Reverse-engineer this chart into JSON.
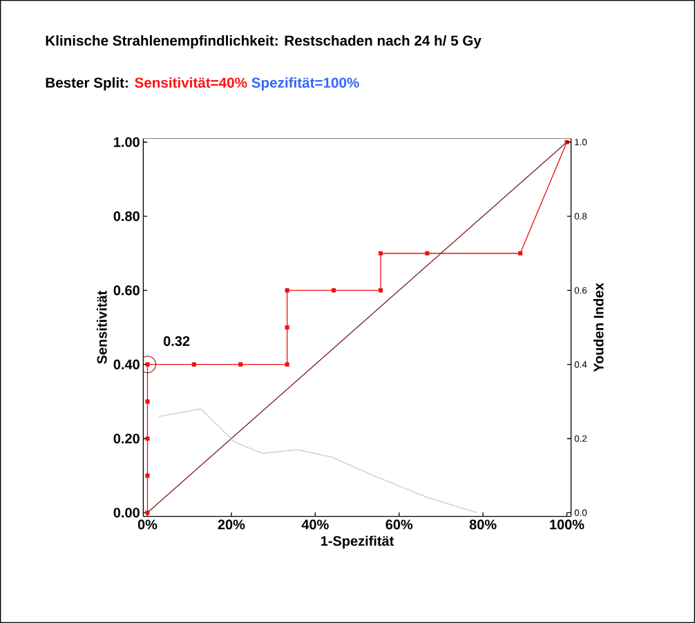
{
  "chart_data": {
    "type": "line",
    "title": "Klinische Strahlenempfindlichkeit: Restschaden nach 24 h/ 5 Gy",
    "subtitle": "Bester Split:",
    "xlabel": "1-Spezifität",
    "ylabel": "Sensitivität",
    "y2label": "Youden Index",
    "annotations": [
      "Sensitivität=40%",
      "Spezifität=100%",
      {
        "text": "0.32",
        "x": 0,
        "y": 0.4
      }
    ],
    "series": [
      {
        "color": "#ee1111",
        "marker": "square",
        "x": [
          0,
          0,
          0,
          0,
          0,
          11.1,
          22.2,
          33.3,
          33.3,
          33.3,
          44.4,
          55.6,
          55.6,
          66.7,
          88.9,
          100
        ],
        "values": [
          0,
          0.1,
          0.2,
          0.3,
          0.4,
          0.4,
          0.4,
          0.4,
          0.5,
          0.6,
          0.6,
          0.6,
          0.7,
          0.7,
          0.7,
          1.0
        ]
      },
      {
        "color": "#7a1f1f",
        "marker": "none",
        "x": [
          0,
          100
        ],
        "values": [
          0,
          1
        ]
      },
      {
        "color": "#999999",
        "marker": "none",
        "line_style": "dotted",
        "axis": "y2",
        "x": [
          2.8,
          12.7,
          20.9,
          27.5,
          35.7,
          44,
          53.9,
          67,
          78.6
        ],
        "values": [
          0.26,
          0.28,
          0.19,
          0.16,
          0.17,
          0.15,
          0.1,
          0.04,
          0
        ]
      }
    ],
    "xlim": [
      -1,
      101
    ],
    "ylim": [
      -0.01,
      1.01
    ],
    "y2lim": [
      -0.01,
      1.01
    ],
    "xticks": [
      {
        "value": 0,
        "label": "0%"
      },
      {
        "value": 20,
        "label": "20%"
      },
      {
        "value": 40,
        "label": "40%"
      },
      {
        "value": 60,
        "label": "60%"
      },
      {
        "value": 80,
        "label": "80%"
      },
      {
        "value": 100,
        "label": "100%"
      }
    ],
    "yticks": [
      {
        "value": 0,
        "label": "0.00"
      },
      {
        "value": 0.2,
        "label": "0.20"
      },
      {
        "value": 0.4,
        "label": "0.40"
      },
      {
        "value": 0.6,
        "label": "0.60"
      },
      {
        "value": 0.8,
        "label": "0.80"
      },
      {
        "value": 1,
        "label": "1.00"
      }
    ],
    "y2ticks": [
      {
        "value": 0,
        "label": "0.0"
      },
      {
        "value": 0.2,
        "label": "0.2"
      },
      {
        "value": 0.4,
        "label": "0.4"
      },
      {
        "value": 0.6,
        "label": "0.6"
      },
      {
        "value": 0.8,
        "label": "0.8"
      },
      {
        "value": 1,
        "label": "1.0"
      }
    ]
  }
}
